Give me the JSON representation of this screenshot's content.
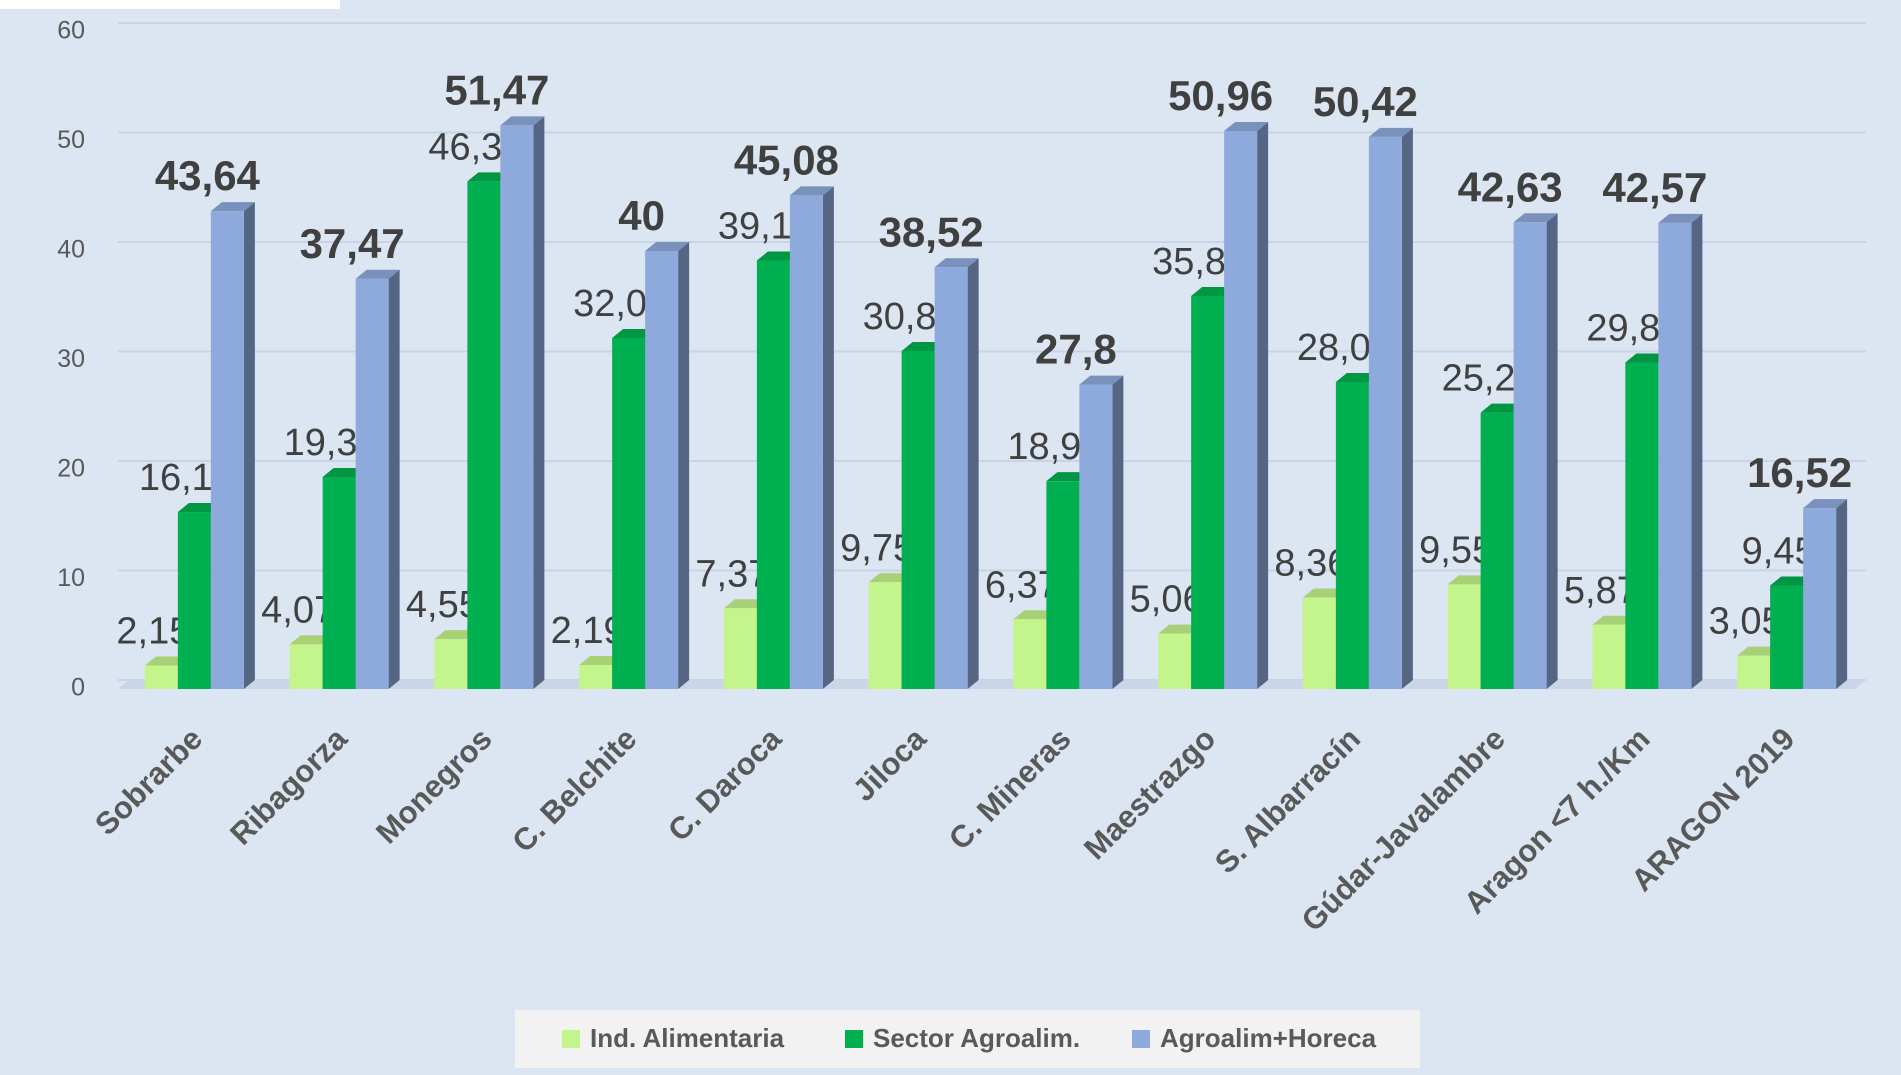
{
  "chart_data": {
    "type": "bar3d",
    "categories": [
      "Sobrarbe",
      "Ribagorza",
      "Monegros",
      "C. Belchite",
      "C. Daroca",
      "Jiloca",
      "C. Mineras",
      "Maestrazgo",
      "S. Albarracín",
      "Gúdar-Javalambre",
      "Aragon <7 h./Km",
      "ARAGON 2019"
    ],
    "series": [
      {
        "name": "Ind. Alimentaria",
        "color": "#c4f58c",
        "values": [
          2.15,
          4.07,
          4.55,
          2.19,
          7.37,
          9.75,
          6.37,
          5.06,
          8.36,
          9.55,
          5.87,
          3.05
        ],
        "value_labels": [
          "2,15",
          "4,07",
          "4,55",
          "2,19",
          "7,37",
          "9,75",
          "6,37",
          "5,06",
          "8,36",
          "9,55",
          "5,87",
          "3,05"
        ]
      },
      {
        "name": "Sector Agroalim.",
        "color": "#00b050",
        "values": [
          16.16,
          19.36,
          46.36,
          32.06,
          39.13,
          30.87,
          18.98,
          35.89,
          28.04,
          25.24,
          29.82,
          9.45
        ],
        "value_labels": [
          "16,16",
          "19,36",
          "46,36",
          "32,06",
          "39,13",
          "30,87",
          "18,98",
          "35,89",
          "28,04",
          "25,24",
          "29,82",
          "9,45"
        ]
      },
      {
        "name": "Agroalim+Horeca",
        "color": "#8eaadc",
        "values": [
          43.64,
          37.47,
          51.47,
          40,
          45.08,
          38.52,
          27.8,
          50.96,
          50.42,
          42.63,
          42.57,
          16.52
        ],
        "value_labels": [
          "43,64",
          "37,47",
          "51,47",
          "40",
          "45,08",
          "38,52",
          "27,8",
          "50,96",
          "50,42",
          "42,63",
          "42,57",
          "16,52"
        ]
      }
    ],
    "ylim": [
      0,
      60
    ],
    "yticks": [
      0,
      10,
      20,
      30,
      40,
      50,
      60
    ],
    "grid": true,
    "legend": "bottom"
  }
}
